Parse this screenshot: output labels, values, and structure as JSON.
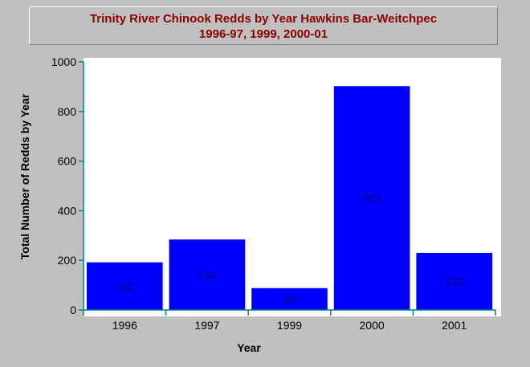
{
  "chart_data": {
    "type": "bar",
    "title": "Trinity River Chinook Redds by Year Hawkins Bar-Weitchpec",
    "subtitle": "1996-97, 1999, 2000-01",
    "xlabel": "Year",
    "ylabel": "Total Number of Redds by Year",
    "categories": [
      "1996",
      "1997",
      "1999",
      "2000",
      "2001"
    ],
    "values": [
      192,
      284,
      88,
      902,
      230
    ],
    "value_labels": [
      "192",
      "284",
      "88",
      "902",
      "230"
    ],
    "ylim": [
      0,
      1000
    ],
    "yticks": [
      0,
      200,
      400,
      600,
      800,
      1000
    ],
    "ytick_labels": [
      "0",
      "200",
      "400",
      "600",
      "800",
      "1000"
    ],
    "grid": false,
    "legend": "none",
    "colors": {
      "bar": "#0000ff",
      "bar_label": "#000080",
      "axis": "#008080",
      "title": "#8b0000",
      "background": "#c0c0c0",
      "plot_background": "#ffffff"
    }
  }
}
